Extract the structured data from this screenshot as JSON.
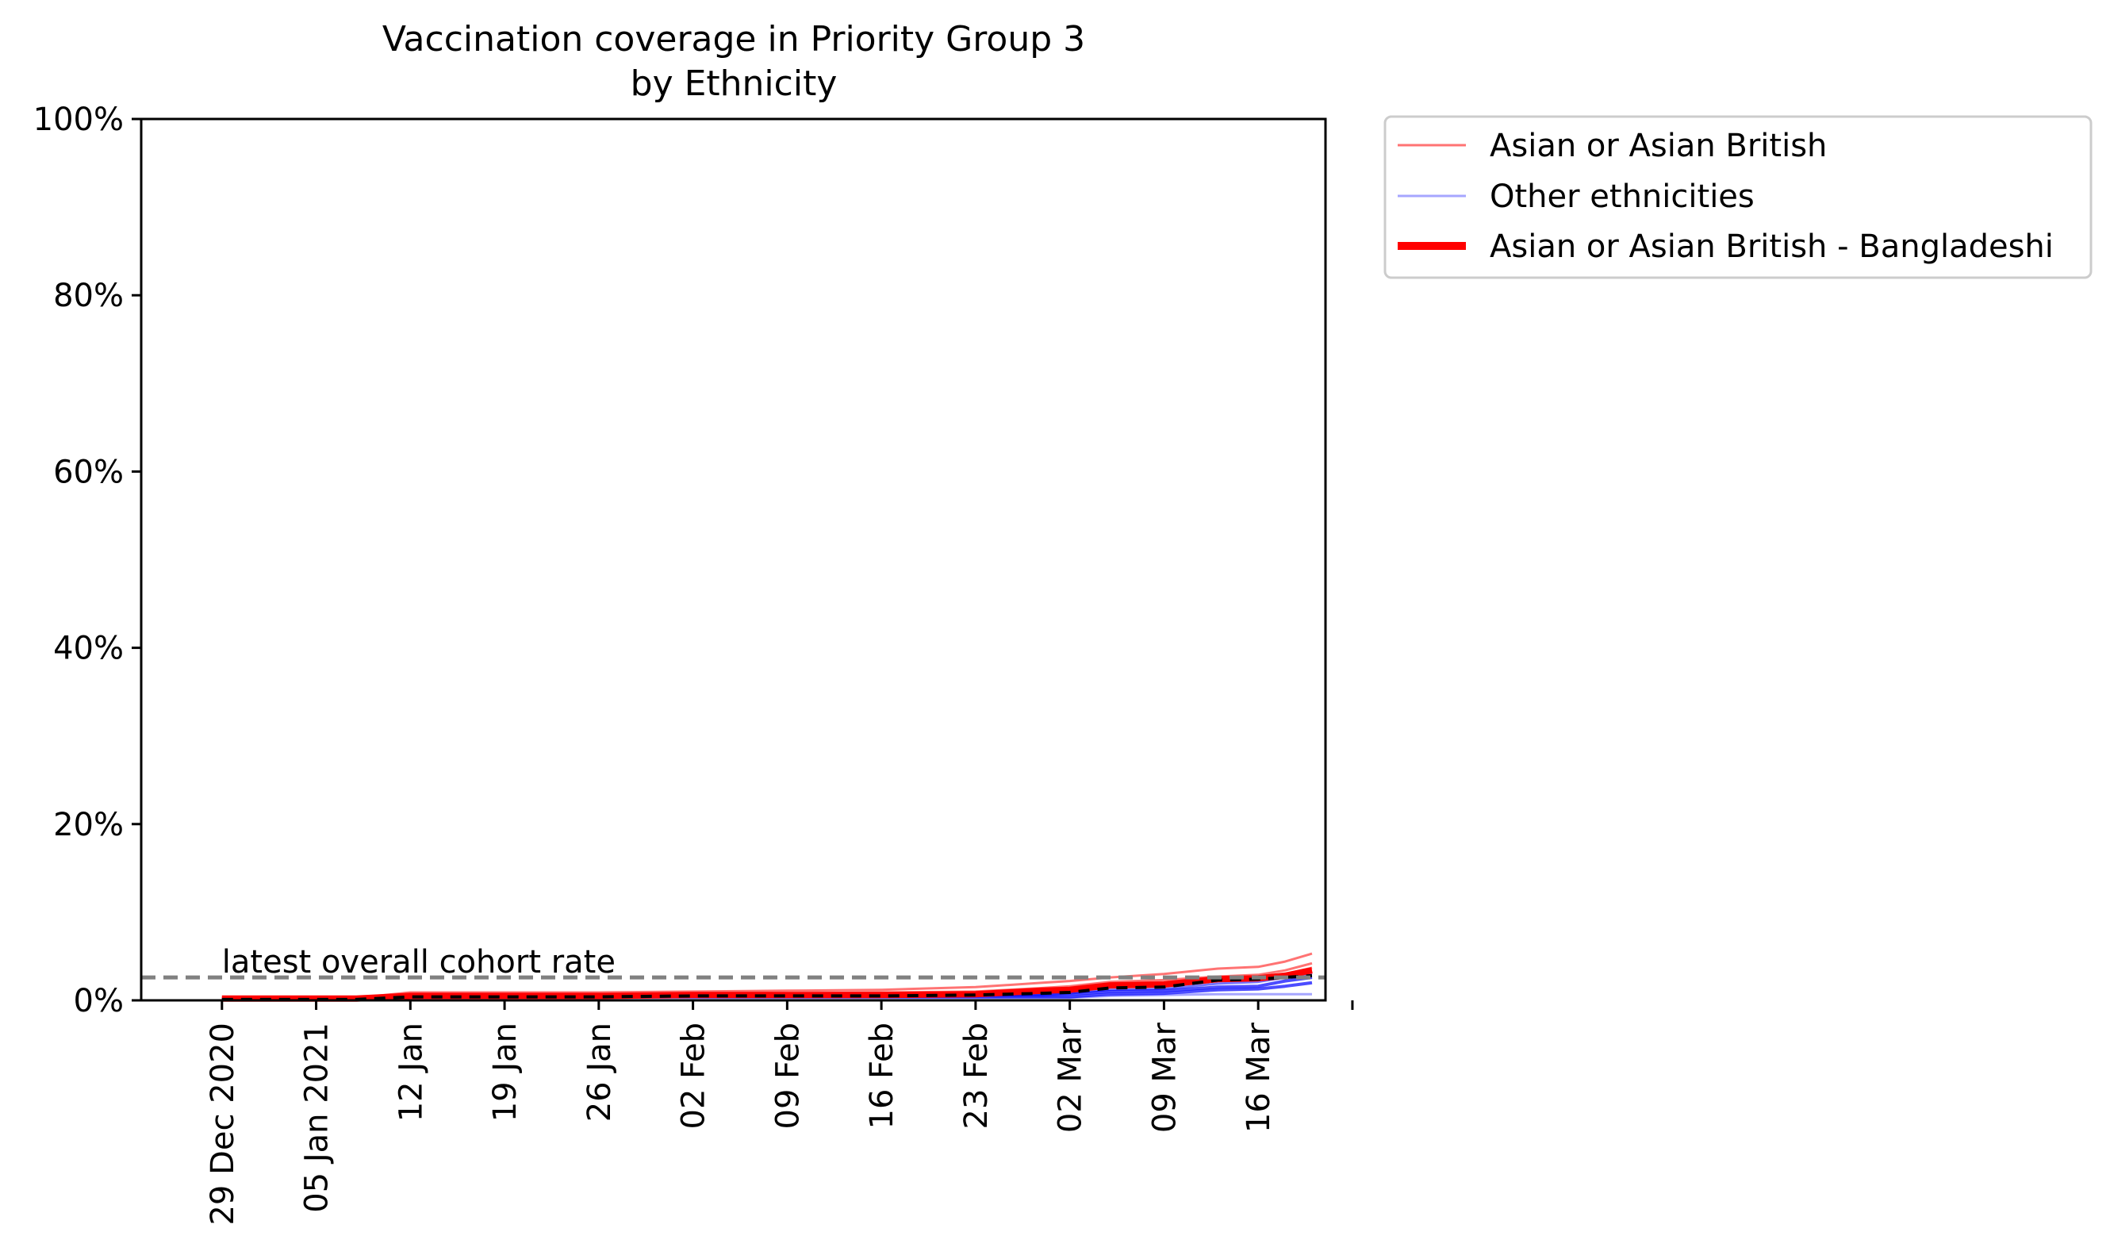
{
  "chart_data": {
    "type": "line",
    "title_line1": "Vaccination coverage in Priority Group 3",
    "title_line2": "by Ethnicity",
    "xlabel": "",
    "ylabel": "",
    "ylim": [
      0,
      100
    ],
    "y_ticks": [
      {
        "value": 0,
        "label": "0%"
      },
      {
        "value": 20,
        "label": "20%"
      },
      {
        "value": 40,
        "label": "40%"
      },
      {
        "value": 60,
        "label": "60%"
      },
      {
        "value": 80,
        "label": "80%"
      },
      {
        "value": 100,
        "label": "100%"
      }
    ],
    "x_range_days": [
      -6,
      82
    ],
    "x_ticks": [
      {
        "day": 0,
        "label": "29 Dec 2020"
      },
      {
        "day": 7,
        "label": "05 Jan 2021"
      },
      {
        "day": 14,
        "label": "12 Jan"
      },
      {
        "day": 21,
        "label": "19 Jan"
      },
      {
        "day": 28,
        "label": "26 Jan"
      },
      {
        "day": 35,
        "label": "02 Feb"
      },
      {
        "day": 42,
        "label": "09 Feb"
      },
      {
        "day": 49,
        "label": "16 Feb"
      },
      {
        "day": 56,
        "label": "23 Feb"
      },
      {
        "day": 63,
        "label": "02 Mar"
      },
      {
        "day": 70,
        "label": "09 Mar"
      },
      {
        "day": 77,
        "label": "16 Mar"
      },
      {
        "day": 84,
        "label": ""
      }
    ],
    "reference_line": {
      "value": 2.6,
      "label": "latest overall cohort rate"
    },
    "legend": [
      {
        "label": "Asian or Asian British",
        "color": "#ff0000",
        "style": "thin-light"
      },
      {
        "label": "Other ethnicities",
        "color": "#0000ff",
        "style": "thin-light"
      },
      {
        "label": "Asian or Asian British - Bangladeshi",
        "color": "#ff0000",
        "style": "thick"
      }
    ],
    "x": [
      0,
      7,
      10,
      14,
      21,
      28,
      35,
      42,
      49,
      56,
      61,
      63,
      66,
      70,
      74,
      77,
      79,
      81
    ],
    "series": [
      {
        "name": "Asian or Asian British",
        "group": "Asian or Asian British",
        "color": "#ff0000",
        "width": 3,
        "opacity": 0.55,
        "values": [
          0.3,
          0.3,
          0.3,
          0.9,
          0.9,
          0.9,
          1.0,
          1.1,
          1.2,
          1.5,
          2.0,
          2.2,
          2.6,
          3.0,
          3.6,
          3.8,
          4.4,
          5.3
        ]
      },
      {
        "name": "Asian or Asian British (2)",
        "group": "Asian or Asian British",
        "color": "#ff0000",
        "width": 3,
        "opacity": 0.55,
        "values": [
          0.2,
          0.2,
          0.2,
          0.7,
          0.7,
          0.7,
          0.8,
          0.8,
          0.9,
          1.0,
          1.4,
          1.6,
          2.1,
          2.3,
          2.7,
          2.9,
          3.4,
          4.2
        ]
      },
      {
        "name": "Asian or Asian British (3)",
        "group": "Asian or Asian British",
        "color": "#ff0000",
        "width": 3,
        "opacity": 0.55,
        "values": [
          0.2,
          0.2,
          0.2,
          0.6,
          0.6,
          0.6,
          0.7,
          0.7,
          0.7,
          0.8,
          1.0,
          1.1,
          1.6,
          1.8,
          2.3,
          2.5,
          3.0,
          3.7
        ]
      },
      {
        "name": "Other ethnicities",
        "group": "Other ethnicities",
        "color": "#0000ff",
        "width": 3,
        "opacity": 0.35,
        "values": [
          0.0,
          0.0,
          0.0,
          0.3,
          0.3,
          0.3,
          0.3,
          0.3,
          0.3,
          0.3,
          0.3,
          0.3,
          0.5,
          0.6,
          0.7,
          0.7,
          0.7,
          0.7
        ]
      },
      {
        "name": "Other ethnicities (2)",
        "group": "Other ethnicities",
        "color": "#0000ff",
        "width": 4,
        "opacity": 0.7,
        "values": [
          0.1,
          0.1,
          0.1,
          0.5,
          0.5,
          0.5,
          0.5,
          0.5,
          0.5,
          0.6,
          0.6,
          0.7,
          1.0,
          1.1,
          1.5,
          1.6,
          2.2,
          2.6
        ]
      },
      {
        "name": "Other ethnicities (3)",
        "group": "Other ethnicities",
        "color": "#0000ff",
        "width": 4,
        "opacity": 0.7,
        "values": [
          0.1,
          0.1,
          0.1,
          0.4,
          0.4,
          0.4,
          0.4,
          0.4,
          0.4,
          0.4,
          0.4,
          0.4,
          0.7,
          0.8,
          1.2,
          1.3,
          1.6,
          2.0
        ]
      },
      {
        "name": "Other ethnicities (4)",
        "group": "Other ethnicities",
        "color": "#0000ff",
        "width": 3,
        "opacity": 0.55,
        "values": [
          0.1,
          0.1,
          0.1,
          0.4,
          0.4,
          0.4,
          0.5,
          0.5,
          0.5,
          0.5,
          0.7,
          0.8,
          1.2,
          1.3,
          1.9,
          2.1,
          2.6,
          3.0
        ]
      },
      {
        "name": "Asian or Asian British - Bangladeshi",
        "group": "Asian or Asian British - Bangladeshi",
        "color": "#ff0000",
        "width": 8,
        "opacity": 1.0,
        "values": [
          0.2,
          0.2,
          0.2,
          0.5,
          0.5,
          0.5,
          0.6,
          0.6,
          0.6,
          0.7,
          1.1,
          1.2,
          1.7,
          1.8,
          2.4,
          2.5,
          2.8,
          3.4
        ]
      },
      {
        "name": "Black dashed overlay",
        "group": "overlay",
        "color": "#000000",
        "width": 4,
        "opacity": 1.0,
        "dashed": true,
        "values": [
          0.1,
          0.1,
          0.1,
          0.4,
          0.4,
          0.4,
          0.5,
          0.5,
          0.5,
          0.6,
          0.8,
          0.9,
          1.4,
          1.5,
          2.3,
          2.4,
          2.6,
          2.8
        ]
      }
    ]
  }
}
